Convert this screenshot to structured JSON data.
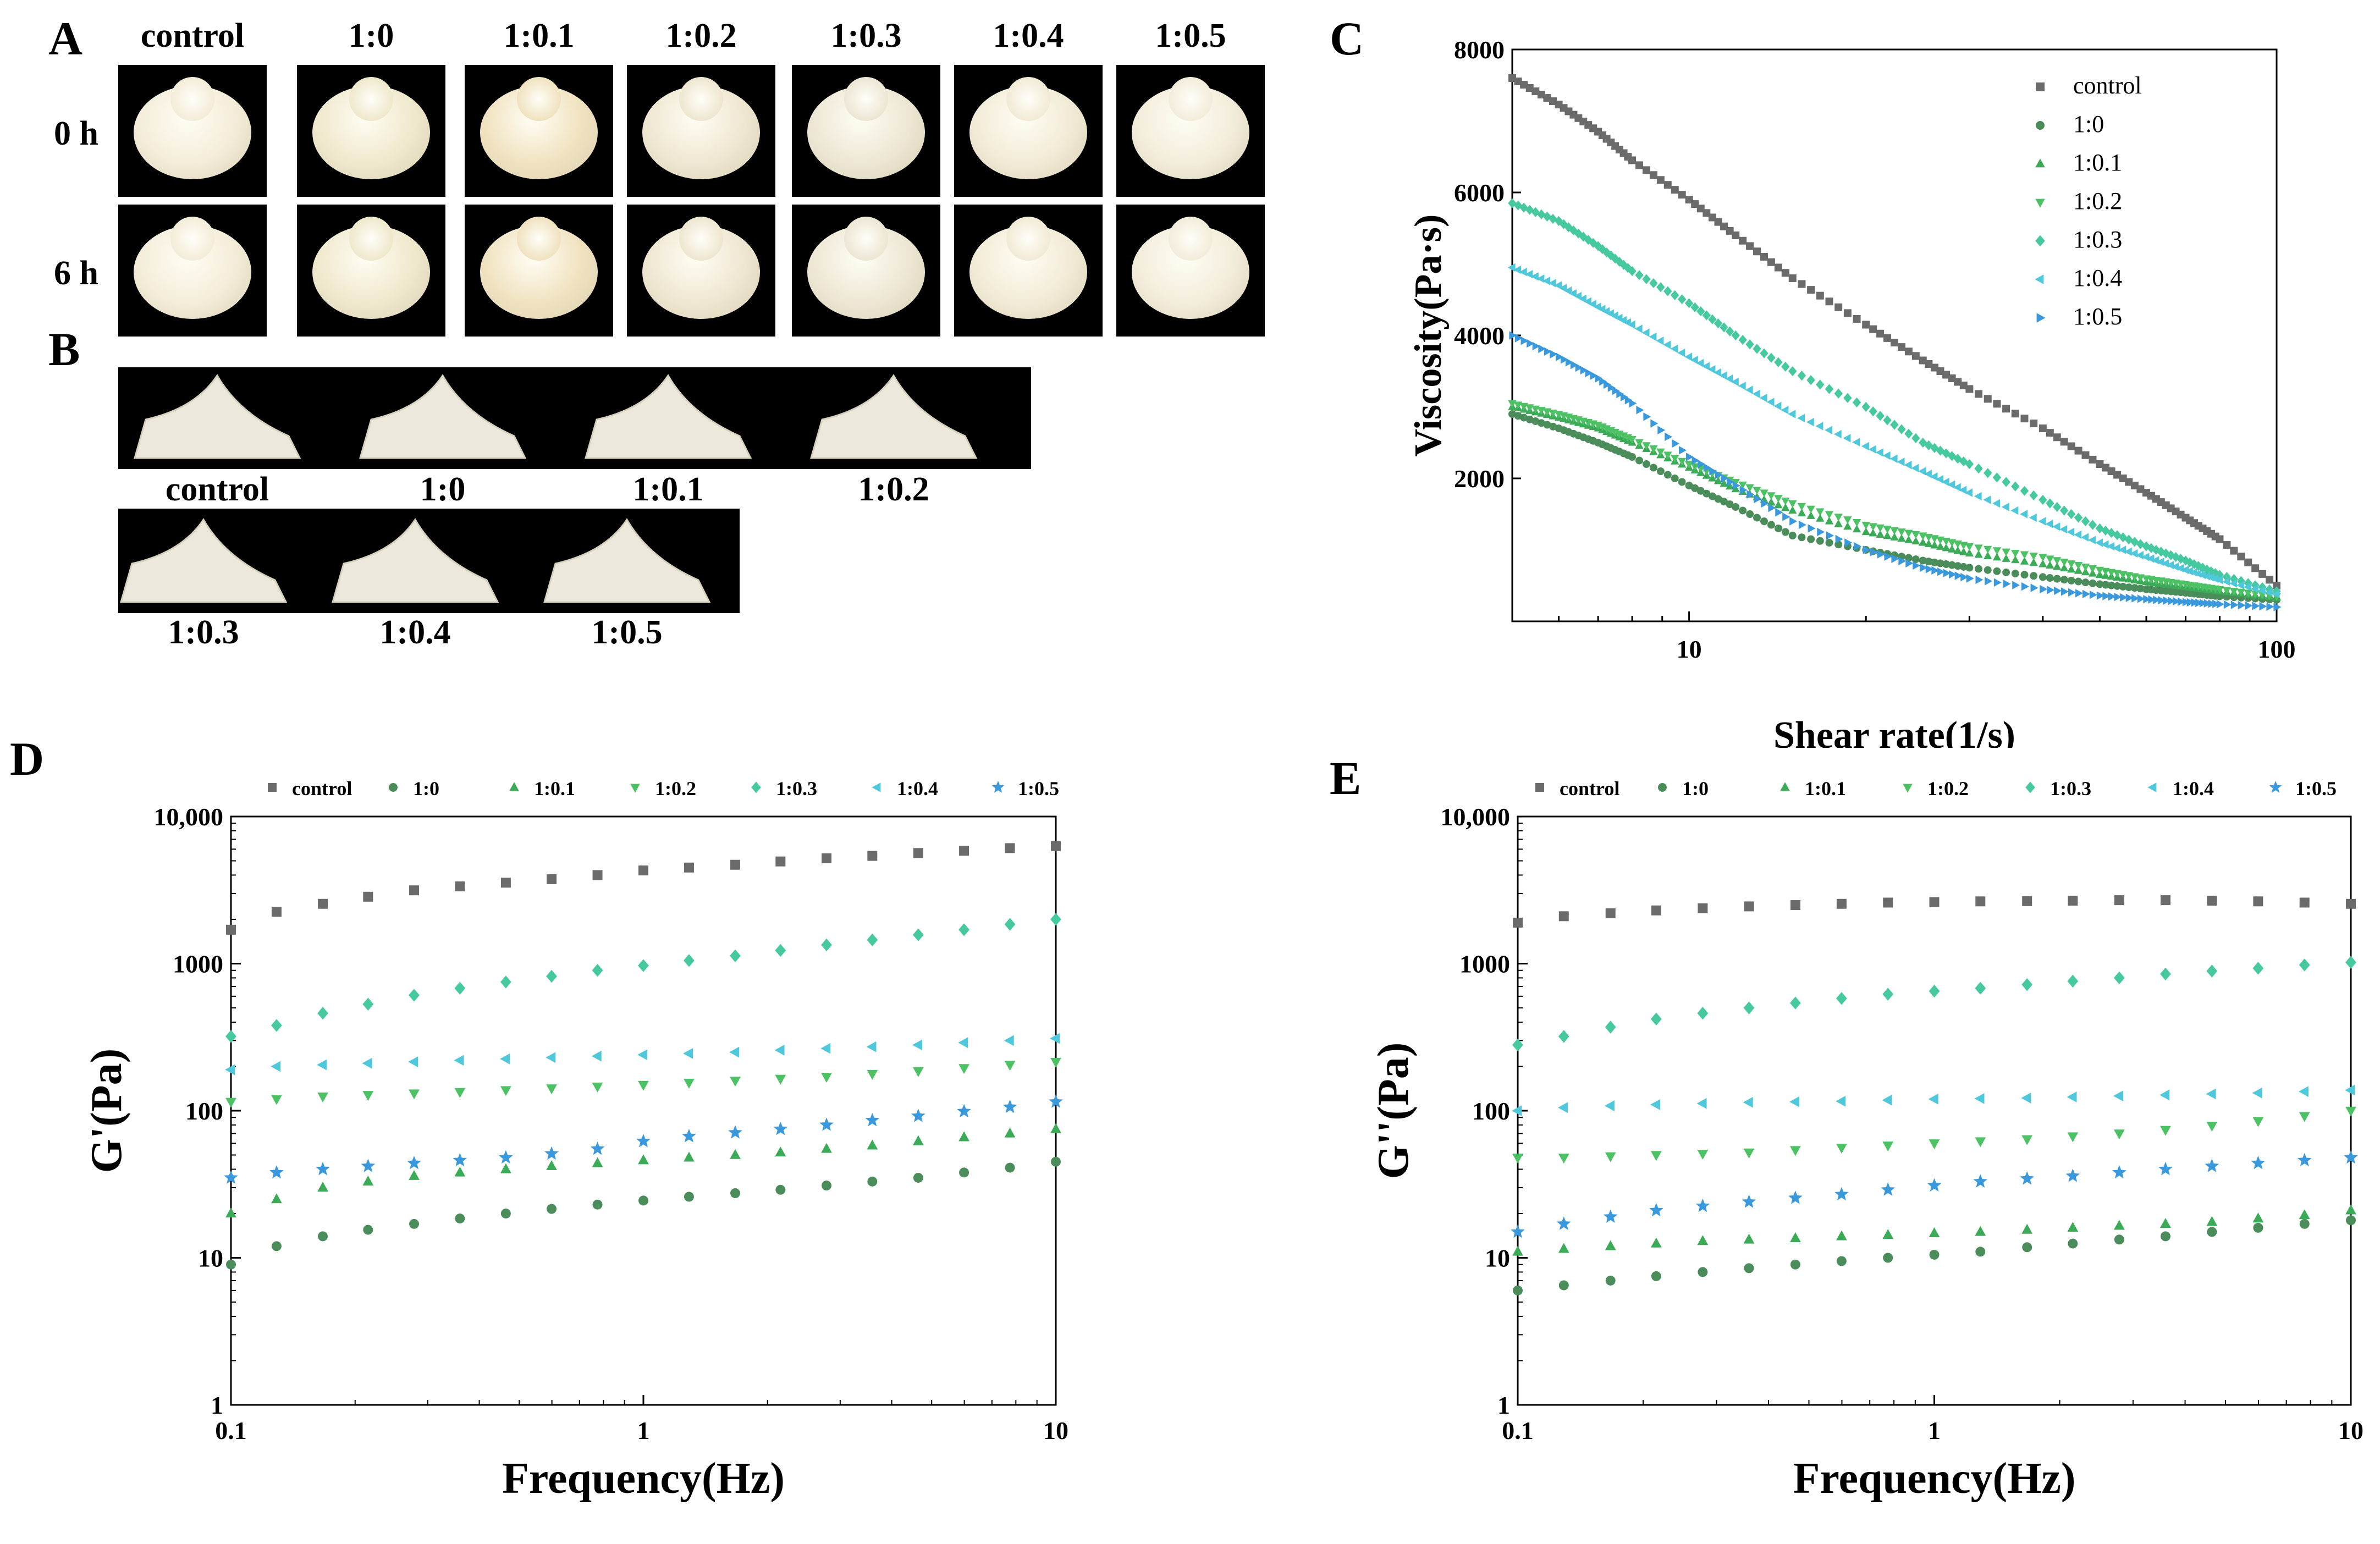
{
  "panels": {
    "A": {
      "letter": "A",
      "columns": [
        "control",
        "1:0",
        "1:0.1",
        "1:0.2",
        "1:0.3",
        "1:0.4",
        "1:0.5"
      ],
      "rows": [
        "0 h",
        "6 h"
      ]
    },
    "B": {
      "letter": "B",
      "labels_row1": [
        "control",
        "1:0",
        "1:0.1",
        "1:0.2"
      ],
      "labels_row2": [
        "1:0.3",
        "1:0.4",
        "1:0.5"
      ]
    },
    "C": {
      "letter": "C"
    },
    "D": {
      "letter": "D"
    },
    "E": {
      "letter": "E"
    }
  },
  "colors": {
    "control": "#6b6b6b",
    "1:0": "#4a8d5a",
    "1:0.1": "#3cab58",
    "1:0.2": "#4cc264",
    "1:0.3": "#46c8a0",
    "1:0.4": "#50c8dc",
    "1:0.5": "#3a98dc"
  },
  "chart_data": [
    {
      "id": "C",
      "type": "scatter",
      "xscale": "log",
      "xlabel": "Shear rate(1/s)",
      "ylabel": "Viscosity(Pa·s)",
      "xlim": [
        5,
        100
      ],
      "ylim": [
        0,
        8000
      ],
      "xticks": [
        10,
        100
      ],
      "xtick_labels": [
        "10",
        "100"
      ],
      "yticks": [
        2000,
        4000,
        6000,
        8000
      ],
      "ytick_labels": [
        "2000",
        "4000",
        "6000",
        "8000"
      ],
      "legend_position": "top-right",
      "series": [
        {
          "name": "control",
          "marker": "square",
          "points": [
            [
              5,
              7600
            ],
            [
              6,
              7230
            ],
            [
              7,
              6850
            ],
            [
              8,
              6450
            ],
            [
              10,
              5900
            ],
            [
              12,
              5400
            ],
            [
              15,
              4800
            ],
            [
              20,
              4150
            ],
            [
              25,
              3650
            ],
            [
              30,
              3250
            ],
            [
              40,
              2700
            ],
            [
              50,
              2200
            ],
            [
              60,
              1800
            ],
            [
              70,
              1450
            ],
            [
              80,
              1150
            ],
            [
              100,
              500
            ]
          ]
        },
        {
          "name": "1:0",
          "marker": "circle",
          "points": [
            [
              5,
              2900
            ],
            [
              6,
              2700
            ],
            [
              7,
              2500
            ],
            [
              8,
              2300
            ],
            [
              10,
              1900
            ],
            [
              12,
              1600
            ],
            [
              15,
              1200
            ],
            [
              20,
              1000
            ],
            [
              25,
              850
            ],
            [
              30,
              750
            ],
            [
              40,
              620
            ],
            [
              50,
              520
            ],
            [
              60,
              450
            ],
            [
              70,
              400
            ],
            [
              80,
              350
            ],
            [
              100,
              300
            ]
          ]
        },
        {
          "name": "1:0.1",
          "marker": "triangle-up",
          "points": [
            [
              5,
              3000
            ],
            [
              6,
              2850
            ],
            [
              7,
              2700
            ],
            [
              8,
              2500
            ],
            [
              10,
              2150
            ],
            [
              12,
              1850
            ],
            [
              15,
              1550
            ],
            [
              20,
              1250
            ],
            [
              25,
              1100
            ],
            [
              30,
              950
            ],
            [
              40,
              800
            ],
            [
              50,
              650
            ],
            [
              60,
              550
            ],
            [
              70,
              480
            ],
            [
              80,
              420
            ],
            [
              100,
              330
            ]
          ]
        },
        {
          "name": "1:0.2",
          "marker": "triangle-down",
          "points": [
            [
              5,
              3050
            ],
            [
              6,
              2900
            ],
            [
              7,
              2750
            ],
            [
              8,
              2550
            ],
            [
              10,
              2200
            ],
            [
              12,
              1950
            ],
            [
              15,
              1650
            ],
            [
              20,
              1350
            ],
            [
              25,
              1200
            ],
            [
              30,
              1050
            ],
            [
              40,
              900
            ],
            [
              50,
              720
            ],
            [
              60,
              600
            ],
            [
              70,
              520
            ],
            [
              80,
              450
            ],
            [
              100,
              350
            ]
          ]
        },
        {
          "name": "1:0.3",
          "marker": "diamond",
          "points": [
            [
              5,
              5850
            ],
            [
              6,
              5600
            ],
            [
              7,
              5250
            ],
            [
              8,
              4900
            ],
            [
              10,
              4450
            ],
            [
              12,
              4000
            ],
            [
              15,
              3500
            ],
            [
              20,
              3000
            ],
            [
              25,
              2500
            ],
            [
              30,
              2200
            ],
            [
              40,
              1700
            ],
            [
              50,
              1300
            ],
            [
              60,
              1050
            ],
            [
              70,
              850
            ],
            [
              80,
              650
            ],
            [
              100,
              420
            ]
          ]
        },
        {
          "name": "1:0.4",
          "marker": "triangle-left",
          "points": [
            [
              5,
              4950
            ],
            [
              6,
              4700
            ],
            [
              7,
              4400
            ],
            [
              8,
              4150
            ],
            [
              10,
              3700
            ],
            [
              12,
              3350
            ],
            [
              15,
              2900
            ],
            [
              20,
              2450
            ],
            [
              25,
              2100
            ],
            [
              30,
              1800
            ],
            [
              40,
              1400
            ],
            [
              50,
              1100
            ],
            [
              60,
              900
            ],
            [
              70,
              720
            ],
            [
              80,
              580
            ],
            [
              100,
              380
            ]
          ]
        },
        {
          "name": "1:0.5",
          "marker": "triangle-right",
          "points": [
            [
              5,
              4000
            ],
            [
              6,
              3700
            ],
            [
              7,
              3400
            ],
            [
              8,
              3050
            ],
            [
              10,
              2300
            ],
            [
              12,
              1900
            ],
            [
              15,
              1400
            ],
            [
              20,
              1000
            ],
            [
              25,
              750
            ],
            [
              30,
              600
            ],
            [
              40,
              450
            ],
            [
              50,
              360
            ],
            [
              60,
              310
            ],
            [
              70,
              270
            ],
            [
              80,
              240
            ],
            [
              100,
              200
            ]
          ]
        }
      ]
    },
    {
      "id": "D",
      "type": "scatter",
      "xscale": "log",
      "yscale": "log",
      "xlabel": "Frequency(Hz)",
      "ylabel": "G'(Pa)",
      "xlim": [
        0.1,
        10
      ],
      "ylim": [
        1,
        10000
      ],
      "xticks": [
        0.1,
        1,
        10
      ],
      "xtick_labels": [
        "0.1",
        "1",
        "10"
      ],
      "yticks": [
        1,
        10,
        100,
        1000,
        10000
      ],
      "ytick_labels": [
        "1",
        "10",
        "100",
        "1000",
        "10,000"
      ],
      "legend_position": "top",
      "x": [
        0.1,
        0.129,
        0.167,
        0.215,
        0.278,
        0.359,
        0.464,
        0.599,
        0.774,
        1.0,
        1.29,
        1.67,
        2.15,
        2.78,
        3.59,
        4.64,
        5.99,
        7.74,
        10.0
      ],
      "series": [
        {
          "name": "control",
          "marker": "square",
          "values": [
            1700,
            2250,
            2550,
            2850,
            3150,
            3350,
            3550,
            3750,
            4000,
            4300,
            4500,
            4700,
            4950,
            5200,
            5400,
            5650,
            5850,
            6100,
            6300
          ]
        },
        {
          "name": "1:0",
          "marker": "circle",
          "values": [
            9,
            12,
            14,
            15.5,
            17,
            18.5,
            20,
            21.5,
            23,
            24.5,
            26,
            27.5,
            29,
            31,
            33,
            35,
            38,
            41,
            45
          ]
        },
        {
          "name": "1:0.1",
          "marker": "triangle-up",
          "values": [
            20,
            25,
            30,
            33,
            36,
            38,
            40,
            42,
            44,
            46,
            48,
            50,
            52,
            55,
            58,
            62,
            66,
            70,
            75
          ]
        },
        {
          "name": "1:0.2",
          "marker": "triangle-down",
          "values": [
            115,
            120,
            125,
            128,
            131,
            134,
            138,
            142,
            146,
            150,
            155,
            160,
            165,
            170,
            178,
            186,
            195,
            205,
            215
          ]
        },
        {
          "name": "1:0.3",
          "marker": "diamond",
          "values": [
            320,
            380,
            460,
            530,
            610,
            680,
            750,
            820,
            900,
            970,
            1050,
            1130,
            1230,
            1340,
            1450,
            1570,
            1700,
            1850,
            2000
          ]
        },
        {
          "name": "1:0.4",
          "marker": "triangle-left",
          "values": [
            190,
            200,
            205,
            210,
            215,
            220,
            225,
            230,
            235,
            240,
            245,
            250,
            258,
            265,
            272,
            280,
            290,
            300,
            310
          ]
        },
        {
          "name": "1:0.5",
          "marker": "star",
          "values": [
            35,
            38,
            40,
            42,
            44,
            46,
            48,
            51,
            55,
            62,
            67,
            71,
            75,
            80,
            86,
            92,
            99,
            106,
            115
          ]
        }
      ]
    },
    {
      "id": "E",
      "type": "scatter",
      "xscale": "log",
      "yscale": "log",
      "xlabel": "Frequency(Hz)",
      "ylabel": "G''(Pa)",
      "xlim": [
        0.1,
        10
      ],
      "ylim": [
        1,
        10000
      ],
      "xticks": [
        0.1,
        1,
        10
      ],
      "xtick_labels": [
        "0.1",
        "1",
        "10"
      ],
      "yticks": [
        1,
        10,
        100,
        1000,
        10000
      ],
      "ytick_labels": [
        "1",
        "10",
        "100",
        "1000",
        "10,000"
      ],
      "legend_position": "top",
      "x": [
        0.1,
        0.129,
        0.167,
        0.215,
        0.278,
        0.359,
        0.464,
        0.599,
        0.774,
        1.0,
        1.29,
        1.67,
        2.15,
        2.78,
        3.59,
        4.64,
        5.99,
        7.74,
        10.0
      ],
      "series": [
        {
          "name": "control",
          "marker": "square",
          "values": [
            1900,
            2100,
            2200,
            2300,
            2380,
            2450,
            2500,
            2550,
            2600,
            2620,
            2650,
            2660,
            2680,
            2700,
            2700,
            2680,
            2650,
            2600,
            2550
          ]
        },
        {
          "name": "1:0",
          "marker": "circle",
          "values": [
            6,
            6.5,
            7,
            7.5,
            8,
            8.5,
            9,
            9.5,
            10,
            10.5,
            11,
            11.8,
            12.5,
            13.3,
            14,
            15,
            16,
            17,
            18
          ]
        },
        {
          "name": "1:0.1",
          "marker": "triangle-up",
          "values": [
            11,
            11.5,
            12,
            12.5,
            13,
            13.3,
            13.6,
            14,
            14.3,
            14.7,
            15,
            15.5,
            16,
            16.5,
            17,
            17.5,
            18.5,
            19.5,
            21
          ]
        },
        {
          "name": "1:0.2",
          "marker": "triangle-down",
          "values": [
            48,
            48,
            49,
            50,
            51,
            52,
            54,
            56,
            58,
            60,
            62,
            64,
            67,
            70,
            74,
            79,
            85,
            92,
            100
          ]
        },
        {
          "name": "1:0.3",
          "marker": "diamond",
          "values": [
            280,
            320,
            370,
            420,
            460,
            500,
            540,
            580,
            620,
            650,
            680,
            720,
            760,
            800,
            850,
            890,
            930,
            980,
            1020
          ]
        },
        {
          "name": "1:0.4",
          "marker": "triangle-left",
          "values": [
            100,
            105,
            108,
            110,
            112,
            114,
            115,
            116,
            118,
            120,
            121,
            122,
            124,
            126,
            128,
            130,
            132,
            135,
            138
          ]
        },
        {
          "name": "1:0.5",
          "marker": "star",
          "values": [
            15,
            17,
            19,
            21,
            22.5,
            24,
            25.5,
            27,
            29,
            31,
            33,
            34.5,
            36,
            38,
            40,
            42,
            44,
            46,
            48
          ]
        }
      ]
    }
  ]
}
